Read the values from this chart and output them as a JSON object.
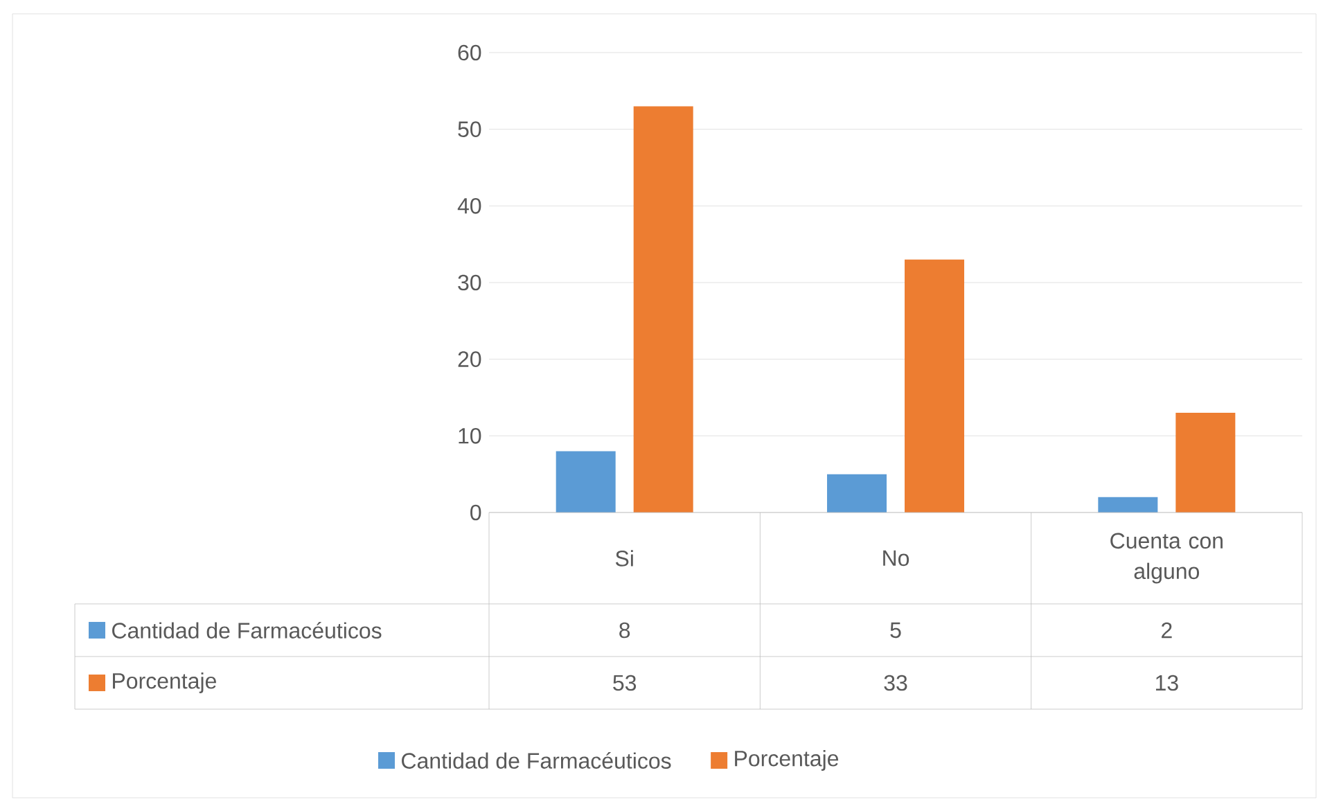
{
  "chart_data": {
    "type": "bar",
    "categories": [
      "Si",
      "No",
      "Cuenta con alguno"
    ],
    "series": [
      {
        "name": "Cantidad de Farmacéuticos",
        "color": "#5b9bd5",
        "values": [
          8,
          5,
          2
        ]
      },
      {
        "name": "Porcentaje",
        "color": "#ed7d31",
        "values": [
          53,
          33,
          13
        ]
      }
    ],
    "ylim": [
      0,
      60
    ],
    "yticks": [
      0,
      10,
      20,
      30,
      40,
      50,
      60
    ],
    "grid": "y",
    "legend": "bottom",
    "data_labels": true
  }
}
